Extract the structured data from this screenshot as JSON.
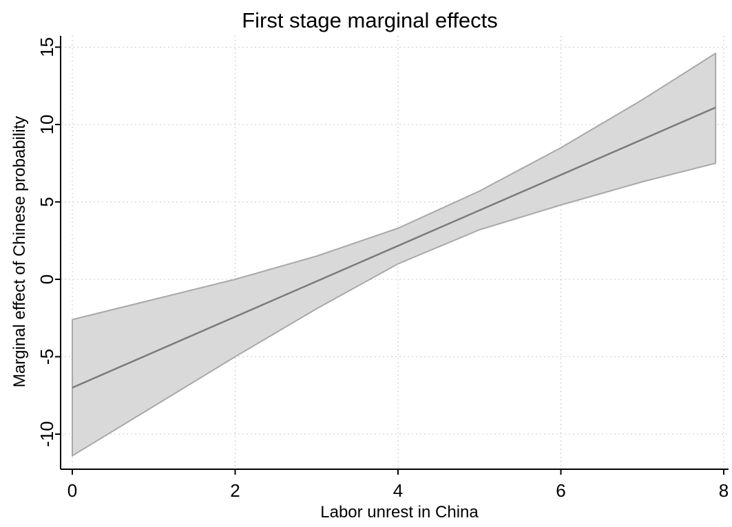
{
  "chart_data": {
    "type": "area",
    "title": "First stage marginal effects",
    "xlabel": "Labor unrest in China",
    "ylabel": "Marginal effect of Chinese probability",
    "xlim": [
      0,
      8
    ],
    "ylim": [
      -12,
      15.5
    ],
    "x_ticks": [
      0,
      2,
      4,
      6,
      8
    ],
    "x_tick_labels": [
      "0",
      "2",
      "4",
      "6",
      "8"
    ],
    "y_ticks": [
      -10,
      -5,
      0,
      5,
      10,
      15
    ],
    "y_tick_labels": [
      "-10",
      "-5",
      "0",
      "5",
      "10",
      "15"
    ],
    "grid": true,
    "colors": {
      "band_fill": "#d9d9d9",
      "band_edge": "#a8a8a8",
      "line": "#7a7a7a",
      "grid": "#c8c8c8"
    },
    "series": [
      {
        "x": [
          0,
          7.9
        ],
        "values": [
          -7.0,
          11.1
        ]
      }
    ],
    "band": {
      "x": [
        0,
        1,
        2,
        3,
        4,
        5,
        6,
        7,
        7.9
      ],
      "upper": [
        -2.6,
        -1.3,
        0.0,
        1.5,
        3.3,
        5.7,
        8.5,
        11.6,
        14.6
      ],
      "lower": [
        -11.4,
        -8.2,
        -5.0,
        -1.9,
        1.0,
        3.2,
        4.8,
        6.3,
        7.5
      ]
    }
  }
}
